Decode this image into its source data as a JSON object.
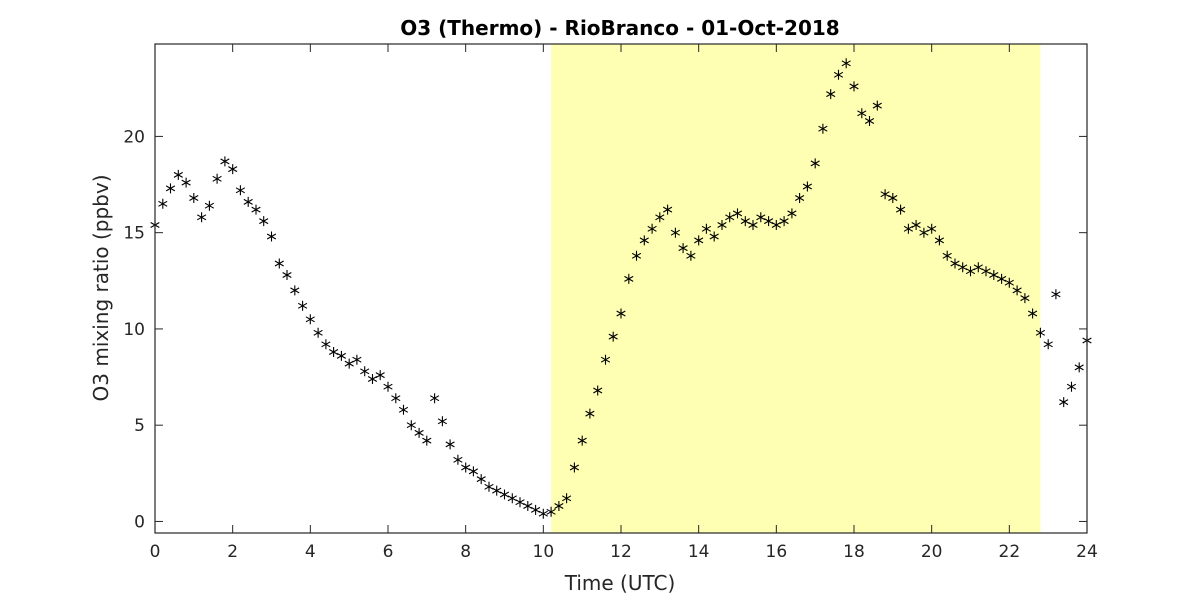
{
  "chart_data": {
    "type": "scatter",
    "title": "O3 (Thermo) - RioBranco - 01-Oct-2018",
    "xlabel": "Time (UTC)",
    "ylabel": "O3 mixing ratio (ppbv)",
    "xlim": [
      0,
      24
    ],
    "ylim": [
      -0.6,
      24.8
    ],
    "xticks": [
      "0",
      "2",
      "4",
      "6",
      "8",
      "10",
      "12",
      "14",
      "16",
      "18",
      "20",
      "22",
      "24"
    ],
    "yticks": [
      "0",
      "5",
      "10",
      "15",
      "20"
    ],
    "marker": "asterisk",
    "marker_color": "#000000",
    "highlight": {
      "x_start": 10.2,
      "x_end": 22.8,
      "color": "#ffffb3"
    },
    "grid": false,
    "legend": "none",
    "series": [
      {
        "x": [
          0.0,
          0.2,
          0.4,
          0.6,
          0.8,
          1.0,
          1.2,
          1.4,
          1.6,
          1.8,
          2.0,
          2.2,
          2.4,
          2.6,
          2.8,
          3.0,
          3.2,
          3.4,
          3.6,
          3.8,
          4.0,
          4.2,
          4.4,
          4.6,
          4.8,
          5.0,
          5.2,
          5.4,
          5.6,
          5.8,
          6.0,
          6.2,
          6.4,
          6.6,
          6.8,
          7.0,
          7.2,
          7.4,
          7.6,
          7.8,
          8.0,
          8.2,
          8.4,
          8.6,
          8.8,
          9.0,
          9.2,
          9.4,
          9.6,
          9.8,
          10.0,
          10.2,
          10.4,
          10.6,
          10.8,
          11.0,
          11.2,
          11.4,
          11.6,
          11.8,
          12.0,
          12.2,
          12.4,
          12.6,
          12.8,
          13.0,
          13.2,
          13.4,
          13.6,
          13.8,
          14.0,
          14.2,
          14.4,
          14.6,
          14.8,
          15.0,
          15.2,
          15.4,
          15.6,
          15.8,
          16.0,
          16.2,
          16.4,
          16.6,
          16.8,
          17.0,
          17.2,
          17.4,
          17.6,
          17.8,
          18.0,
          18.2,
          18.4,
          18.6,
          18.8,
          19.0,
          19.2,
          19.4,
          19.6,
          19.8,
          20.0,
          20.2,
          20.4,
          20.6,
          20.8,
          21.0,
          21.2,
          21.4,
          21.6,
          21.8,
          22.0,
          22.2,
          22.4,
          22.6,
          22.8,
          23.0,
          23.2,
          23.4,
          23.6,
          23.8,
          24.0
        ],
        "y": [
          15.4,
          16.5,
          17.3,
          18.0,
          17.6,
          16.8,
          15.8,
          16.4,
          17.8,
          18.7,
          18.3,
          17.2,
          16.6,
          16.2,
          15.6,
          14.8,
          13.4,
          12.8,
          12.0,
          11.2,
          10.5,
          9.8,
          9.2,
          8.8,
          8.6,
          8.2,
          8.4,
          7.8,
          7.4,
          7.6,
          7.0,
          6.4,
          5.8,
          5.0,
          4.6,
          4.2,
          6.4,
          5.2,
          4.0,
          3.2,
          2.8,
          2.6,
          2.2,
          1.8,
          1.6,
          1.4,
          1.2,
          1.0,
          0.8,
          0.6,
          0.4,
          0.5,
          0.8,
          1.2,
          2.8,
          4.2,
          5.6,
          6.8,
          8.4,
          9.6,
          10.8,
          12.6,
          13.8,
          14.6,
          15.2,
          15.8,
          16.2,
          15.0,
          14.2,
          13.8,
          14.6,
          15.2,
          14.8,
          15.4,
          15.8,
          16.0,
          15.6,
          15.4,
          15.8,
          15.6,
          15.4,
          15.6,
          16.0,
          16.8,
          17.4,
          18.6,
          20.4,
          22.2,
          23.2,
          23.8,
          22.6,
          21.2,
          20.8,
          21.6,
          17.0,
          16.8,
          16.2,
          15.2,
          15.4,
          15.0,
          15.2,
          14.6,
          13.8,
          13.4,
          13.2,
          13.0,
          13.2,
          13.0,
          12.8,
          12.6,
          12.4,
          12.0,
          11.6,
          10.8,
          9.8,
          9.2,
          11.8,
          6.2,
          7.0,
          8.0,
          9.4
        ]
      }
    ]
  }
}
